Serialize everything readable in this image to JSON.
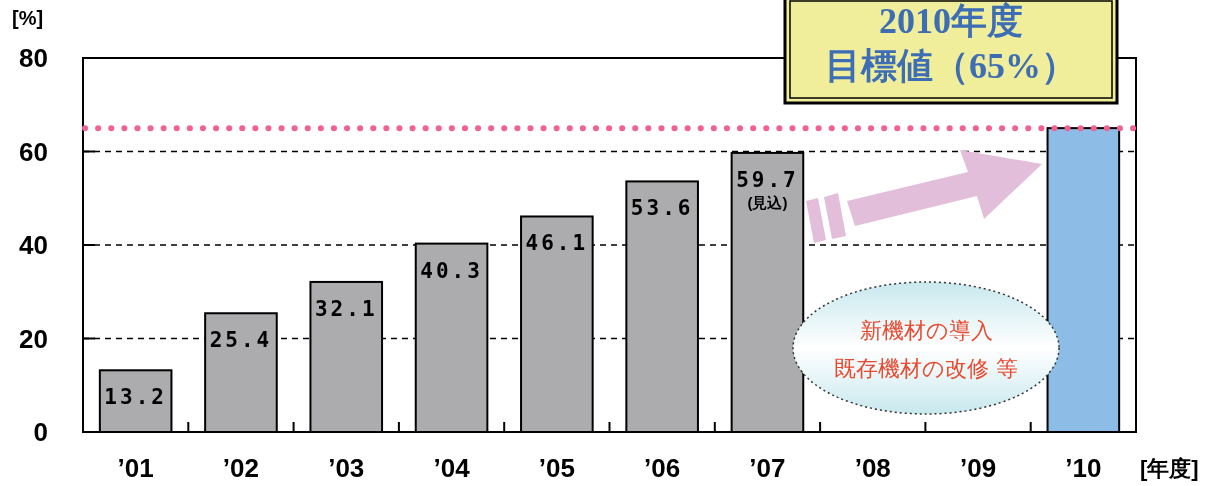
{
  "chart_data": {
    "type": "bar",
    "ylabel": "[%]",
    "xlabel": "[年度]",
    "categories": [
      "’01",
      "’02",
      "’03",
      "’04",
      "’05",
      "’06",
      "’07",
      "’08",
      "’09",
      "’10"
    ],
    "values": [
      13.2,
      25.4,
      32.1,
      40.3,
      46.1,
      53.6,
      59.7,
      null,
      null,
      65
    ],
    "colors": [
      "#acacae",
      "#acacae",
      "#acacae",
      "#acacae",
      "#acacae",
      "#acacae",
      "#acacae",
      null,
      null,
      "#8dbde6"
    ],
    "value_labels": [
      "13.2",
      "25.4",
      "32.1",
      "40.3",
      "46.1",
      "53.6",
      "59.7",
      null,
      null,
      null
    ],
    "ylim": [
      0,
      80
    ],
    "yticks": [
      0,
      20,
      40,
      60,
      80
    ],
    "grid": "y",
    "ref_lines": [
      {
        "axis": "y",
        "value": 65,
        "label": "2010年度",
        "color": "#f06292",
        "line_style": "dotted"
      }
    ],
    "annotations": [
      "(見込)",
      "目標値（65%）",
      "新機材の導入",
      "既存機材の改修 等"
    ]
  }
}
